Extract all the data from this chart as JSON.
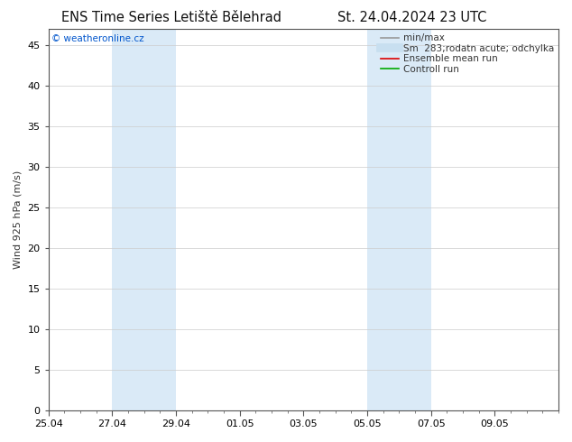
{
  "title_left": "ENS Time Series Letiště Bělehrad",
  "title_right": "St. 24.04.2024 23 UTC",
  "ylabel": "Wind 925 hPa (m/s)",
  "watermark": "© weatheronline.cz",
  "watermark_color": "#0055cc",
  "xlim_start": 0,
  "xlim_end": 16,
  "ylim": [
    0,
    47
  ],
  "yticks": [
    0,
    5,
    10,
    15,
    20,
    25,
    30,
    35,
    40,
    45
  ],
  "xtick_labels": [
    "25.04",
    "27.04",
    "29.04",
    "01.05",
    "03.05",
    "05.05",
    "07.05",
    "09.05"
  ],
  "xtick_positions": [
    0,
    2,
    4,
    6,
    8,
    10,
    12,
    14
  ],
  "shaded_regions": [
    {
      "start": 2,
      "end": 4,
      "color": "#daeaf7"
    },
    {
      "start": 10,
      "end": 12,
      "color": "#daeaf7"
    }
  ],
  "background_color": "#ffffff",
  "plot_bg_color": "#ffffff",
  "grid_color": "#cccccc",
  "border_color": "#555555",
  "legend_entries": [
    {
      "label": "min/max",
      "color": "#999999",
      "lw": 1.2,
      "style": "solid"
    },
    {
      "label": "Sm  283;rodatn acute; odchylka",
      "color": "#c8dff0",
      "lw": 7,
      "style": "solid"
    },
    {
      "label": "Ensemble mean run",
      "color": "#dd0000",
      "lw": 1.2,
      "style": "solid"
    },
    {
      "label": "Controll run",
      "color": "#00aa00",
      "lw": 1.2,
      "style": "solid"
    }
  ],
  "title_fontsize": 10.5,
  "label_fontsize": 8,
  "tick_fontsize": 8,
  "legend_fontsize": 7.5,
  "watermark_fontsize": 7.5
}
